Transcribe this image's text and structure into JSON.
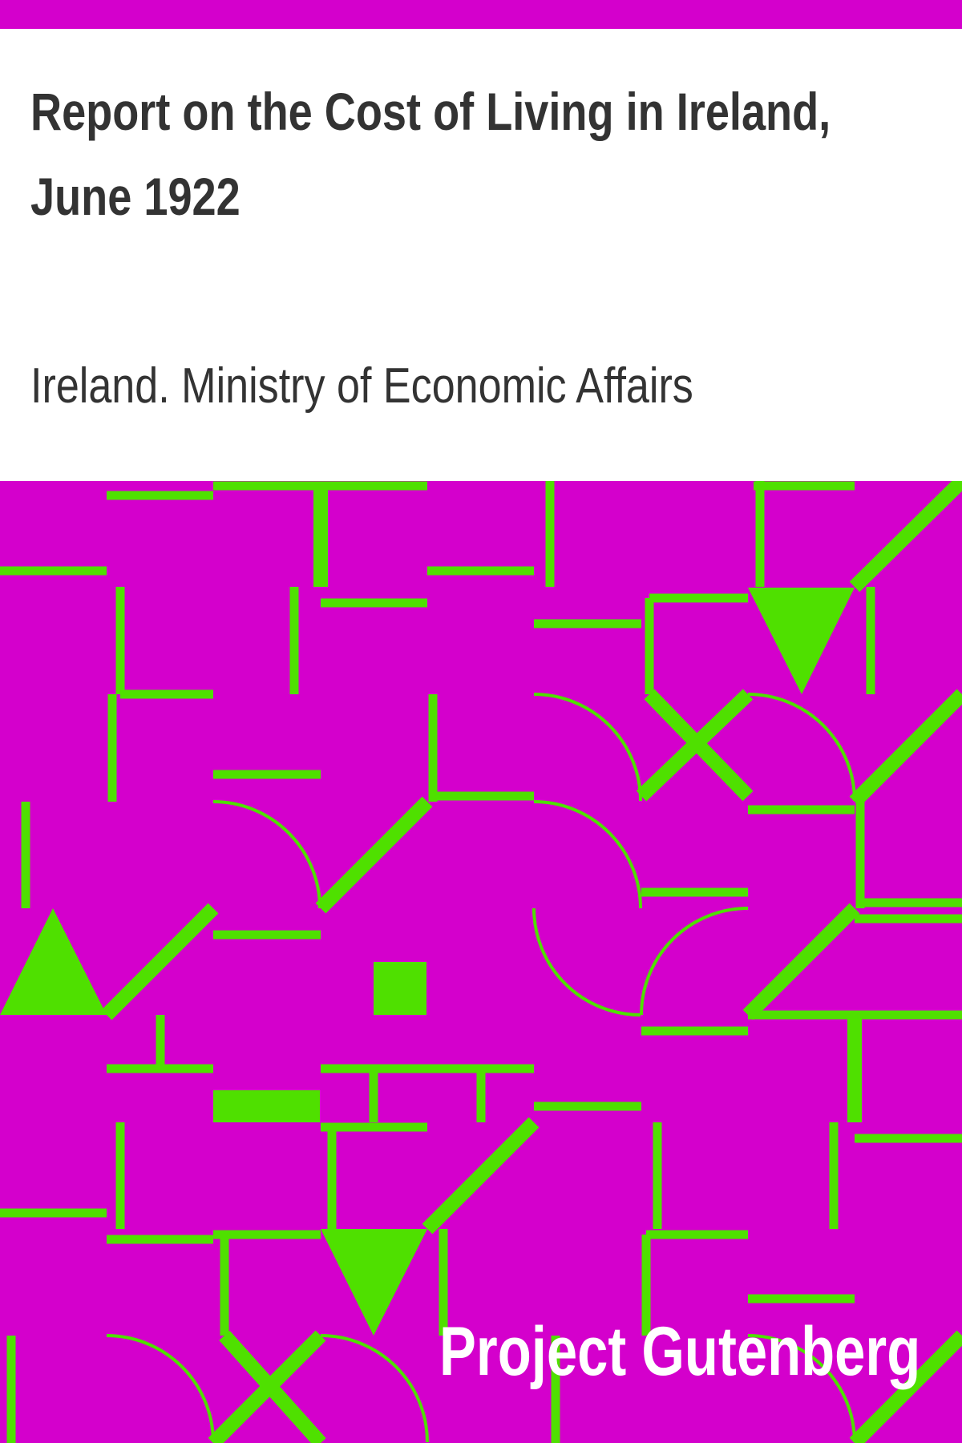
{
  "book": {
    "title": "Report on the Cost of Living in Ireland, June 1922",
    "author": "Ireland. Ministry of Economic Affairs"
  },
  "publisher": {
    "name": "Project Gutenberg"
  },
  "colors": {
    "pattern_background": "#d400cc",
    "pattern_foreground": "#4fe000",
    "band": "#d400cc",
    "page_background": "#ffffff",
    "text": "#333333",
    "publisher_text": "#ffffff"
  }
}
